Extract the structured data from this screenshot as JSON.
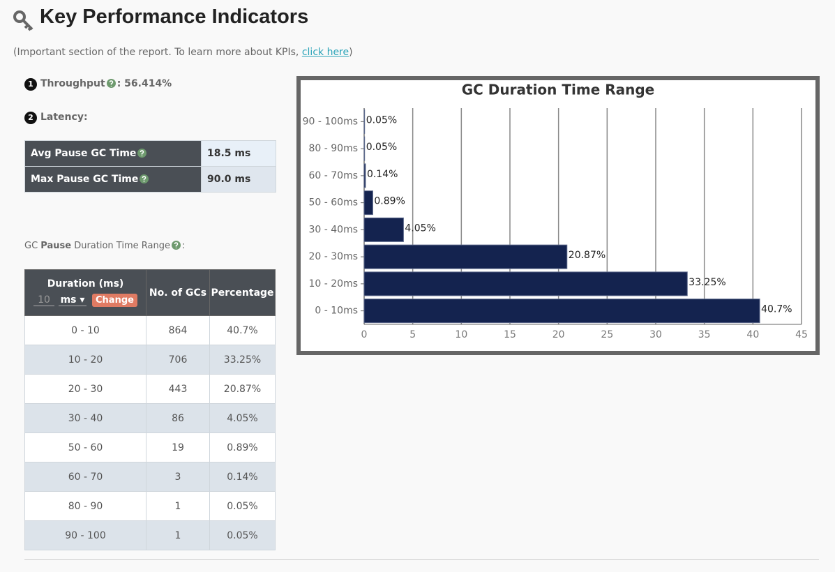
{
  "header": {
    "title": "Key Performance Indicators",
    "note": {
      "before": "(Important section of the report. To learn more about KPIs,",
      "link": "click here",
      "after": ")"
    }
  },
  "throughput": {
    "step": "1",
    "label": "Throughput",
    "value": ": 56.414%"
  },
  "latency": {
    "step": "2",
    "label": "Latency:",
    "rows": [
      [
        "Avg Pause GC Time",
        "18.5 ms"
      ],
      [
        "Max Pause GC Time",
        "90.0 ms"
      ]
    ]
  },
  "section_label": {
    "before": "GC",
    "bold": "Pause",
    "after": "Duration Time Range",
    "end": ":"
  },
  "table": {
    "header": {
      "duration": "Duration (ms)",
      "input_placeholder": "10",
      "unit": "ms",
      "button": "Change",
      "count": "No. of GCs",
      "percentage": "Percentage"
    },
    "rows": [
      [
        "0 - 10",
        "864",
        "40.7%"
      ],
      [
        "10 - 20",
        "706",
        "33.25%"
      ],
      [
        "20 - 30",
        "443",
        "20.87%"
      ],
      [
        "30 - 40",
        "86",
        "4.05%"
      ],
      [
        "50 - 60",
        "19",
        "0.89%"
      ],
      [
        "60 - 70",
        "3",
        "0.14%"
      ],
      [
        "80 - 90",
        "1",
        "0.05%"
      ],
      [
        "90 - 100",
        "1",
        "0.05%"
      ]
    ]
  },
  "chart_data": {
    "type": "bar",
    "orientation": "horizontal",
    "title": "GC Duration Time Range",
    "categories": [
      "0 - 10ms",
      "10 - 20ms",
      "20 - 30ms",
      "30 - 40ms",
      "50 - 60ms",
      "60 - 70ms",
      "80 - 90ms",
      "90 - 100ms"
    ],
    "values": [
      40.7,
      33.25,
      20.87,
      4.05,
      0.89,
      0.14,
      0.05,
      0.05
    ],
    "value_labels": [
      "40.7%",
      "33.25%",
      "20.87%",
      "4.05%",
      "0.89%",
      "0.14%",
      "0.05%",
      "0.05%"
    ],
    "color": "#14234f",
    "xlim": [
      0,
      45
    ],
    "xticks": [
      0,
      5,
      10,
      15,
      20,
      25,
      30,
      35,
      40,
      45
    ],
    "grid": true
  }
}
